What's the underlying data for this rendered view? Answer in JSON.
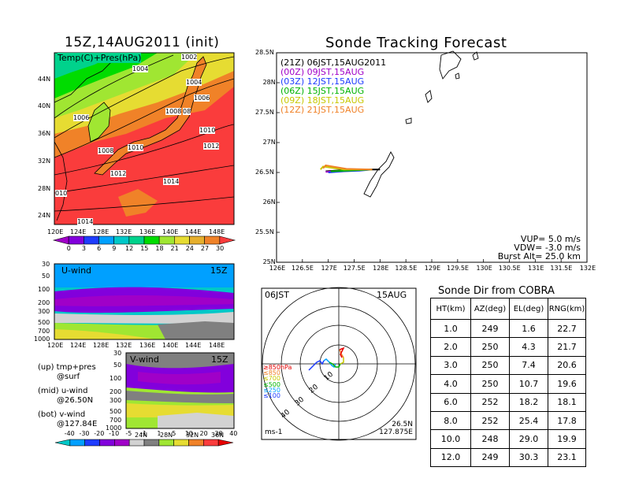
{
  "left_top": {
    "title": "15Z,14AUG2011 (init)",
    "panel_label": "Temp(C)+Pres(hPa)",
    "xticks": [
      "120E",
      "124E",
      "128E",
      "132E",
      "136E",
      "140E",
      "144E",
      "148E"
    ],
    "yticks": [
      "44N",
      "40N",
      "36N",
      "32N",
      "28N",
      "24N"
    ],
    "isobars": [
      "1002",
      "1004",
      "1004",
      "1006",
      "1006",
      "1008",
      "08",
      "1010",
      "1012",
      "1008",
      "1010",
      "1012",
      "1014",
      "010",
      "1014"
    ],
    "colorbar_ticks": [
      "0",
      "3",
      "6",
      "9",
      "12",
      "15",
      "18",
      "21",
      "24",
      "27",
      "30"
    ],
    "colorbar_colors": [
      "#a000c8",
      "#8200dc",
      "#1e3cff",
      "#00a0ff",
      "#00c8c8",
      "#00d28c",
      "#00dc00",
      "#a0e632",
      "#e6dc32",
      "#e6af2d",
      "#f08228",
      "#fa3c3c"
    ]
  },
  "left_mid": {
    "panel_label": "U-wind",
    "time_label": "15Z",
    "yticks": [
      "30",
      "50",
      "100",
      "200",
      "300",
      "500",
      "700",
      "1000"
    ],
    "xticks": [
      "120E",
      "124E",
      "128E",
      "132E",
      "136E",
      "140E",
      "144E",
      "148E"
    ]
  },
  "left_bot": {
    "panel_label": "V-wind",
    "time_label": "15Z",
    "yticks": [
      "30",
      "50",
      "100",
      "200",
      "300",
      "500",
      "700",
      "1000"
    ],
    "xticks": [
      "24N",
      "28N",
      "32N",
      "36N"
    ],
    "colorbar_ticks": [
      "-40",
      "-30",
      "-20",
      "-10",
      "-5",
      "-1",
      "1",
      "5",
      "10",
      "20",
      "30",
      "40"
    ],
    "colorbar_colors": [
      "#00c8c8",
      "#00a0ff",
      "#1e3cff",
      "#8200dc",
      "#a000c8",
      "#d2d2d2",
      "#808080",
      "#a0e632",
      "#e6dc32",
      "#f08228",
      "#fa3c3c",
      "#e60000"
    ]
  },
  "notes": [
    {
      "a": "(up) tmp+pres",
      "b": "@surf"
    },
    {
      "a": "(mid) u-wind",
      "b": "@26.50N"
    },
    {
      "a": "(bot) v-wind",
      "b": "@127.84E"
    }
  ],
  "tracking": {
    "title": "Sonde Tracking Forecast",
    "legend": [
      {
        "text": "(21Z) 06JST,15AUG2011",
        "color": "#000000"
      },
      {
        "text": "(00Z) 09JST,15AUG",
        "color": "#a000c8"
      },
      {
        "text": "(03Z) 12JST,15AUG",
        "color": "#1e3cff"
      },
      {
        "text": "(06Z) 15JST,15AUG",
        "color": "#00b400"
      },
      {
        "text": "(09Z) 18JST,15AUG",
        "color": "#c8c800"
      },
      {
        "text": "(12Z) 21JST,15AUG",
        "color": "#f08228"
      }
    ],
    "params": [
      "VUP= 5.0 m/s",
      "VDW= -3.0 m/s",
      "Burst Alt= 25.0 km"
    ]
  },
  "radar": {
    "time_label": "06JST",
    "date_label": "15AUG",
    "ring_labels": [
      "10",
      "20",
      "30",
      "40"
    ],
    "legend": [
      {
        "text": "≥850hPa",
        "color": "#e60000"
      },
      {
        "text": "≤850",
        "color": "#f08228"
      },
      {
        "text": "≤700",
        "color": "#c8c800"
      },
      {
        "text": "≤500",
        "color": "#00b400"
      },
      {
        "text": "≤250",
        "color": "#00a0ff"
      },
      {
        "text": "≤100",
        "color": "#1e3cff"
      }
    ],
    "unit": "ms-1",
    "loc_lat": "26.5N",
    "loc_lon": "127.875E"
  },
  "sonde_dir": {
    "title": "Sonde Dir from COBRA",
    "headers": [
      "HT(km)",
      "AZ(deg)",
      "EL(deg)",
      "RNG(km)"
    ],
    "rows": [
      [
        "1.0",
        "249",
        "1.6",
        "22.7"
      ],
      [
        "2.0",
        "250",
        "4.3",
        "21.7"
      ],
      [
        "3.0",
        "250",
        "7.4",
        "20.6"
      ],
      [
        "4.0",
        "250",
        "10.7",
        "19.6"
      ],
      [
        "6.0",
        "252",
        "18.2",
        "18.1"
      ],
      [
        "8.0",
        "252",
        "25.4",
        "17.8"
      ],
      [
        "10.0",
        "248",
        "29.0",
        "19.9"
      ],
      [
        "12.0",
        "249",
        "30.3",
        "23.1"
      ]
    ]
  },
  "chart_data": [
    {
      "type": "line",
      "title": "Sonde Tracking Forecast",
      "xlabel": "",
      "ylabel": "",
      "xlim": [
        126,
        132
      ],
      "ylim": [
        25,
        28.5
      ],
      "x_ticks": [
        "126E",
        "126.5E",
        "127E",
        "127.5E",
        "128E",
        "128.5E",
        "129E",
        "129.5E",
        "130E",
        "130.5E",
        "131E",
        "131.5E",
        "132E"
      ],
      "y_ticks": [
        "25N",
        "25.5N",
        "26N",
        "26.5N",
        "27N",
        "27.5N",
        "28N",
        "28.5N"
      ],
      "series": [
        {
          "name": "(21Z) 06JST,15AUG2011",
          "color": "#000000",
          "x": [
            126.95,
            127.3,
            127.6,
            127.85,
            128.0
          ],
          "y": [
            26.52,
            26.54,
            26.54,
            26.55,
            26.55
          ]
        },
        {
          "name": "(00Z) 09JST,15AUG",
          "color": "#a000c8",
          "x": [
            126.95,
            127.3,
            127.6,
            127.85
          ],
          "y": [
            26.51,
            26.53,
            26.54,
            26.55
          ]
        },
        {
          "name": "(03Z) 12JST,15AUG",
          "color": "#1e3cff",
          "x": [
            127.0,
            127.3,
            127.6,
            127.85
          ],
          "y": [
            26.5,
            26.52,
            26.53,
            26.55
          ]
        },
        {
          "name": "(06Z) 15JST,15AUG",
          "color": "#00b400",
          "x": [
            127.05,
            127.35,
            127.6,
            127.85
          ],
          "y": [
            26.52,
            26.53,
            26.54,
            26.55
          ]
        },
        {
          "name": "(09Z) 18JST,15AUG",
          "color": "#c8c800",
          "x": [
            126.85,
            126.9,
            127.3,
            127.85
          ],
          "y": [
            26.55,
            26.6,
            26.55,
            26.55
          ]
        },
        {
          "name": "(12Z) 21JST,15AUG",
          "color": "#f08228",
          "x": [
            126.9,
            126.95,
            127.35,
            127.85
          ],
          "y": [
            26.57,
            26.62,
            26.56,
            26.55
          ]
        }
      ]
    },
    {
      "type": "table",
      "title": "Sonde Dir from COBRA",
      "columns": [
        "HT(km)",
        "AZ(deg)",
        "EL(deg)",
        "RNG(km)"
      ],
      "rows": [
        [
          1.0,
          249,
          1.6,
          22.7
        ],
        [
          2.0,
          250,
          4.3,
          21.7
        ],
        [
          3.0,
          250,
          7.4,
          20.6
        ],
        [
          4.0,
          250,
          10.7,
          19.6
        ],
        [
          6.0,
          252,
          18.2,
          18.1
        ],
        [
          8.0,
          252,
          25.4,
          17.8
        ],
        [
          10.0,
          248,
          29.0,
          19.9
        ],
        [
          12.0,
          249,
          30.3,
          23.1
        ]
      ]
    }
  ]
}
